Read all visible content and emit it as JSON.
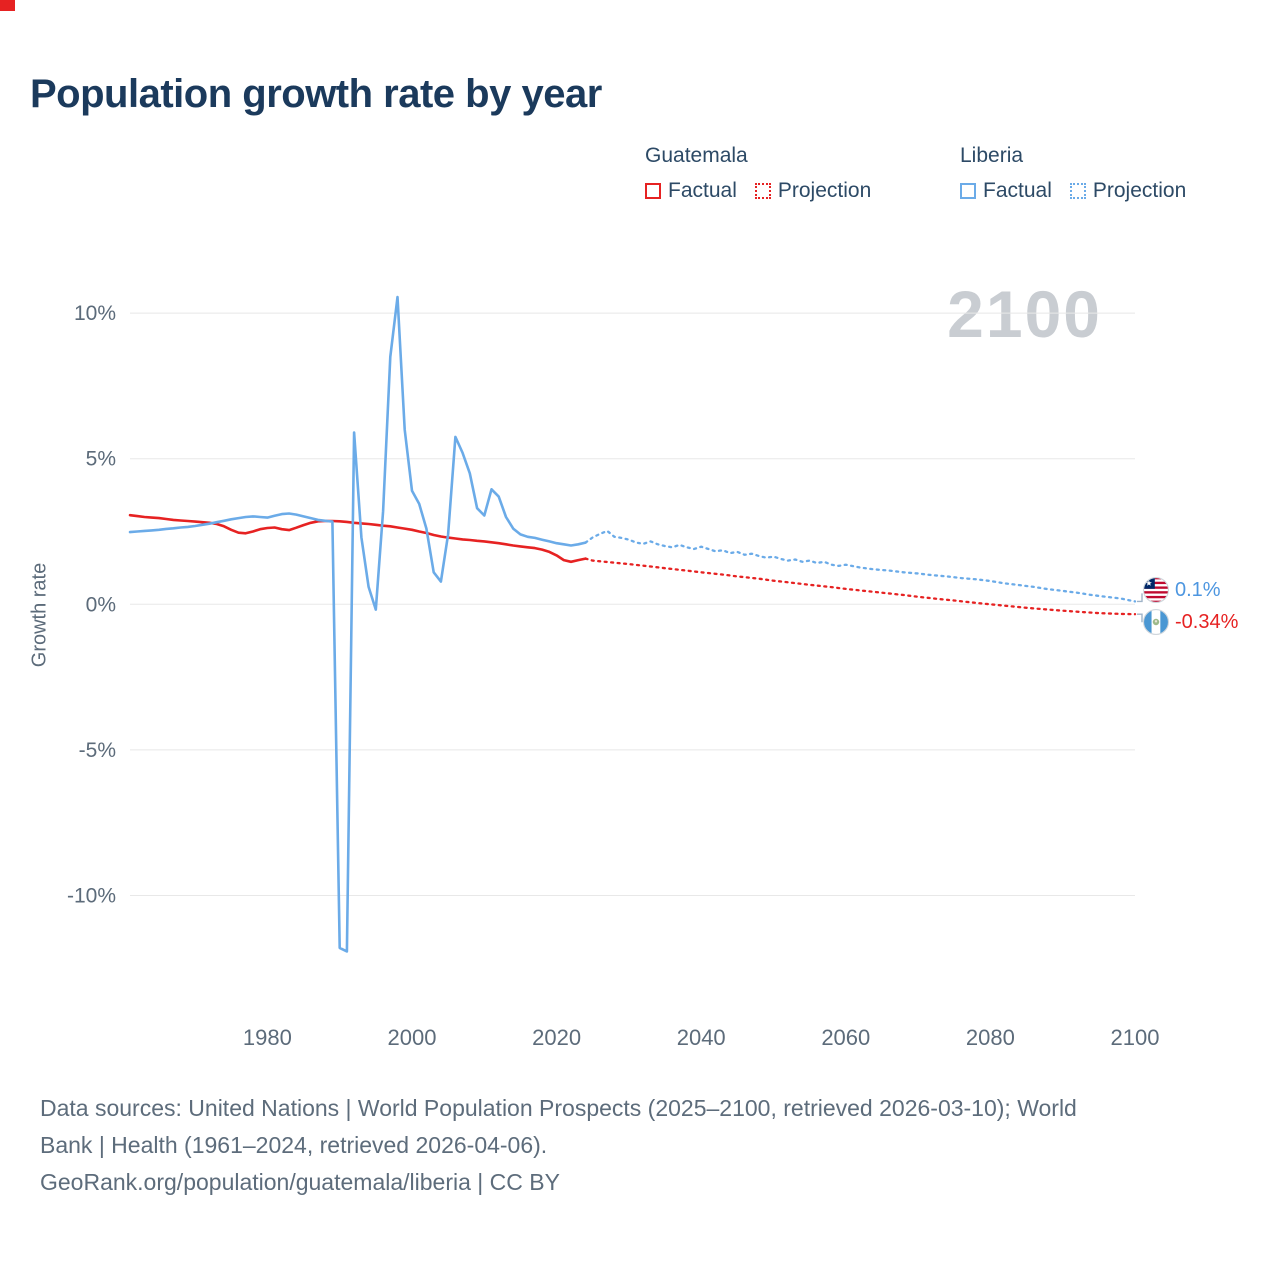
{
  "page": {
    "title": "Population growth rate by year",
    "footer_line1": "Data sources: United Nations | World Population Prospects (2025–2100, retrieved 2026-03-10); World",
    "footer_line2": "Bank | Health (1961–2024, retrieved 2026-04-06).",
    "footer_line3": "GeoRank.org/population/guatemala/liberia | CC BY"
  },
  "legend": {
    "groups": [
      {
        "name": "Guatemala",
        "color": "#e62222",
        "items": [
          {
            "label": "Factual",
            "style": "solid"
          },
          {
            "label": "Projection",
            "style": "dotted"
          }
        ]
      },
      {
        "name": "Liberia",
        "color": "#6babe8",
        "items": [
          {
            "label": "Factual",
            "style": "solid"
          },
          {
            "label": "Projection",
            "style": "dotted"
          }
        ]
      }
    ]
  },
  "chart_data": {
    "type": "line",
    "title": "Population growth rate by year",
    "xlabel": "",
    "ylabel": "Growth rate",
    "watermark": "2100",
    "xlim": [
      1961,
      2100
    ],
    "ylim": [
      -14,
      11.55
    ],
    "grid": "horizontal",
    "legend_position": "top-right",
    "x_ticks": [
      1980,
      2000,
      2020,
      2040,
      2060,
      2080,
      2100
    ],
    "y_ticks": [
      {
        "value": 10,
        "label": "10%"
      },
      {
        "value": 5,
        "label": "5%"
      },
      {
        "value": 0,
        "label": "0%"
      },
      {
        "value": -5,
        "label": "-5%"
      },
      {
        "value": -10,
        "label": "-10%"
      }
    ],
    "end_labels": [
      {
        "country": "Liberia",
        "text": "0.1%",
        "value": 0.1,
        "color": "#4d96e0"
      },
      {
        "country": "Guatemala",
        "text": "-0.34%",
        "value": -0.34,
        "color": "#e62222"
      }
    ],
    "series": [
      {
        "id": "guatemala-factual",
        "name": "Guatemala Factual",
        "color": "#e62222",
        "style": "solid",
        "points": [
          [
            1961,
            3.06
          ],
          [
            1962,
            3.03
          ],
          [
            1963,
            3.0
          ],
          [
            1964,
            2.98
          ],
          [
            1965,
            2.96
          ],
          [
            1966,
            2.93
          ],
          [
            1967,
            2.9
          ],
          [
            1968,
            2.88
          ],
          [
            1969,
            2.86
          ],
          [
            1970,
            2.84
          ],
          [
            1971,
            2.82
          ],
          [
            1972,
            2.8
          ],
          [
            1973,
            2.76
          ],
          [
            1974,
            2.68
          ],
          [
            1975,
            2.56
          ],
          [
            1976,
            2.46
          ],
          [
            1977,
            2.44
          ],
          [
            1978,
            2.5
          ],
          [
            1979,
            2.58
          ],
          [
            1980,
            2.62
          ],
          [
            1981,
            2.64
          ],
          [
            1982,
            2.58
          ],
          [
            1983,
            2.55
          ],
          [
            1984,
            2.63
          ],
          [
            1985,
            2.72
          ],
          [
            1986,
            2.8
          ],
          [
            1987,
            2.85
          ],
          [
            1988,
            2.86
          ],
          [
            1989,
            2.86
          ],
          [
            1990,
            2.85
          ],
          [
            1991,
            2.83
          ],
          [
            1992,
            2.8
          ],
          [
            1993,
            2.78
          ],
          [
            1994,
            2.76
          ],
          [
            1995,
            2.73
          ],
          [
            1996,
            2.7
          ],
          [
            1997,
            2.68
          ],
          [
            1998,
            2.64
          ],
          [
            1999,
            2.6
          ],
          [
            2000,
            2.56
          ],
          [
            2001,
            2.5
          ],
          [
            2002,
            2.45
          ],
          [
            2003,
            2.38
          ],
          [
            2004,
            2.33
          ],
          [
            2005,
            2.29
          ],
          [
            2006,
            2.26
          ],
          [
            2007,
            2.23
          ],
          [
            2008,
            2.21
          ],
          [
            2009,
            2.18
          ],
          [
            2010,
            2.16
          ],
          [
            2011,
            2.13
          ],
          [
            2012,
            2.1
          ],
          [
            2013,
            2.06
          ],
          [
            2014,
            2.02
          ],
          [
            2015,
            1.99
          ],
          [
            2016,
            1.96
          ],
          [
            2017,
            1.93
          ],
          [
            2018,
            1.88
          ],
          [
            2019,
            1.8
          ],
          [
            2020,
            1.68
          ],
          [
            2021,
            1.52
          ],
          [
            2022,
            1.46
          ],
          [
            2023,
            1.52
          ],
          [
            2024,
            1.57
          ]
        ]
      },
      {
        "id": "guatemala-projection",
        "name": "Guatemala Projection",
        "color": "#e62222",
        "style": "dotted",
        "points": [
          [
            2024,
            1.57
          ],
          [
            2025,
            1.5
          ],
          [
            2028,
            1.43
          ],
          [
            2030,
            1.38
          ],
          [
            2033,
            1.3
          ],
          [
            2035,
            1.24
          ],
          [
            2038,
            1.16
          ],
          [
            2040,
            1.1
          ],
          [
            2043,
            1.02
          ],
          [
            2045,
            0.96
          ],
          [
            2048,
            0.88
          ],
          [
            2050,
            0.81
          ],
          [
            2053,
            0.73
          ],
          [
            2055,
            0.67
          ],
          [
            2058,
            0.59
          ],
          [
            2060,
            0.53
          ],
          [
            2063,
            0.45
          ],
          [
            2065,
            0.4
          ],
          [
            2068,
            0.32
          ],
          [
            2070,
            0.26
          ],
          [
            2073,
            0.18
          ],
          [
            2075,
            0.13
          ],
          [
            2078,
            0.05
          ],
          [
            2080,
            0.0
          ],
          [
            2083,
            -0.07
          ],
          [
            2085,
            -0.12
          ],
          [
            2088,
            -0.18
          ],
          [
            2090,
            -0.22
          ],
          [
            2093,
            -0.27
          ],
          [
            2095,
            -0.3
          ],
          [
            2098,
            -0.33
          ],
          [
            2100,
            -0.34
          ]
        ]
      },
      {
        "id": "liberia-factual",
        "name": "Liberia Factual",
        "color": "#6babe8",
        "style": "solid",
        "points": [
          [
            1961,
            2.48
          ],
          [
            1962,
            2.5
          ],
          [
            1963,
            2.52
          ],
          [
            1964,
            2.54
          ],
          [
            1965,
            2.56
          ],
          [
            1966,
            2.59
          ],
          [
            1967,
            2.61
          ],
          [
            1968,
            2.64
          ],
          [
            1969,
            2.66
          ],
          [
            1970,
            2.69
          ],
          [
            1971,
            2.73
          ],
          [
            1972,
            2.77
          ],
          [
            1973,
            2.82
          ],
          [
            1974,
            2.87
          ],
          [
            1975,
            2.92
          ],
          [
            1976,
            2.96
          ],
          [
            1977,
            3.0
          ],
          [
            1978,
            3.02
          ],
          [
            1979,
            3.0
          ],
          [
            1980,
            2.98
          ],
          [
            1981,
            3.04
          ],
          [
            1982,
            3.1
          ],
          [
            1983,
            3.12
          ],
          [
            1984,
            3.08
          ],
          [
            1985,
            3.02
          ],
          [
            1986,
            2.96
          ],
          [
            1987,
            2.9
          ],
          [
            1988,
            2.87
          ],
          [
            1989,
            2.84
          ],
          [
            1990,
            -11.8
          ],
          [
            1991,
            -11.92
          ],
          [
            1992,
            5.9
          ],
          [
            1993,
            2.3
          ],
          [
            1994,
            0.6
          ],
          [
            1995,
            -0.18
          ],
          [
            1996,
            3.2
          ],
          [
            1997,
            8.5
          ],
          [
            1998,
            10.55
          ],
          [
            1999,
            6.0
          ],
          [
            2000,
            3.9
          ],
          [
            2001,
            3.45
          ],
          [
            2002,
            2.6
          ],
          [
            2003,
            1.1
          ],
          [
            2004,
            0.78
          ],
          [
            2005,
            2.4
          ],
          [
            2006,
            5.75
          ],
          [
            2007,
            5.2
          ],
          [
            2008,
            4.5
          ],
          [
            2009,
            3.3
          ],
          [
            2010,
            3.05
          ],
          [
            2011,
            3.95
          ],
          [
            2012,
            3.7
          ],
          [
            2013,
            3.0
          ],
          [
            2014,
            2.6
          ],
          [
            2015,
            2.4
          ],
          [
            2016,
            2.32
          ],
          [
            2017,
            2.28
          ],
          [
            2018,
            2.22
          ],
          [
            2019,
            2.16
          ],
          [
            2020,
            2.1
          ],
          [
            2021,
            2.06
          ],
          [
            2022,
            2.02
          ],
          [
            2023,
            2.06
          ],
          [
            2024,
            2.12
          ]
        ]
      },
      {
        "id": "liberia-projection",
        "name": "Liberia Projection",
        "color": "#6babe8",
        "style": "dotted",
        "points": [
          [
            2024,
            2.12
          ],
          [
            2025,
            2.3
          ],
          [
            2026,
            2.42
          ],
          [
            2027,
            2.52
          ],
          [
            2028,
            2.32
          ],
          [
            2029,
            2.28
          ],
          [
            2030,
            2.22
          ],
          [
            2031,
            2.12
          ],
          [
            2032,
            2.08
          ],
          [
            2033,
            2.16
          ],
          [
            2034,
            2.06
          ],
          [
            2035,
            2.0
          ],
          [
            2036,
            1.96
          ],
          [
            2037,
            2.04
          ],
          [
            2038,
            1.96
          ],
          [
            2039,
            1.9
          ],
          [
            2040,
            1.98
          ],
          [
            2041,
            1.9
          ],
          [
            2042,
            1.82
          ],
          [
            2043,
            1.86
          ],
          [
            2044,
            1.76
          ],
          [
            2045,
            1.8
          ],
          [
            2046,
            1.7
          ],
          [
            2047,
            1.74
          ],
          [
            2048,
            1.66
          ],
          [
            2049,
            1.6
          ],
          [
            2050,
            1.64
          ],
          [
            2051,
            1.56
          ],
          [
            2052,
            1.5
          ],
          [
            2053,
            1.54
          ],
          [
            2054,
            1.46
          ],
          [
            2055,
            1.5
          ],
          [
            2056,
            1.42
          ],
          [
            2057,
            1.46
          ],
          [
            2058,
            1.36
          ],
          [
            2059,
            1.32
          ],
          [
            2060,
            1.36
          ],
          [
            2062,
            1.26
          ],
          [
            2064,
            1.2
          ],
          [
            2066,
            1.16
          ],
          [
            2068,
            1.1
          ],
          [
            2070,
            1.06
          ],
          [
            2072,
            1.0
          ],
          [
            2074,
            0.96
          ],
          [
            2076,
            0.9
          ],
          [
            2078,
            0.86
          ],
          [
            2080,
            0.8
          ],
          [
            2082,
            0.72
          ],
          [
            2084,
            0.66
          ],
          [
            2086,
            0.6
          ],
          [
            2088,
            0.52
          ],
          [
            2090,
            0.46
          ],
          [
            2092,
            0.4
          ],
          [
            2094,
            0.32
          ],
          [
            2096,
            0.26
          ],
          [
            2098,
            0.2
          ],
          [
            2100,
            0.1
          ]
        ]
      }
    ]
  }
}
